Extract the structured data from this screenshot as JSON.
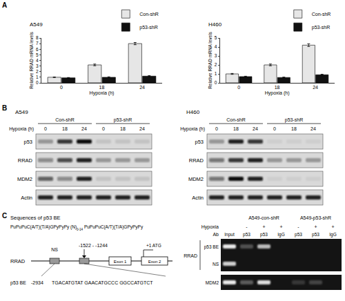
{
  "chart_data": [
    {
      "type": "bar",
      "title": "A549",
      "categories": [
        "0",
        "18",
        "24"
      ],
      "x_label": "Hypoxia (h)",
      "y_label": "Relative RRAD mRNA levels",
      "ylim": [
        0,
        8
      ],
      "yticks": [
        0,
        1,
        2,
        3,
        4,
        5,
        6,
        7,
        8
      ],
      "grid": false,
      "legend": "top-right",
      "series": [
        {
          "name": "Con-shR",
          "color": "#e6e6e6",
          "values": [
            1.0,
            3.2,
            7.0
          ],
          "error": [
            0.05,
            0.15,
            0.2
          ]
        },
        {
          "name": "p53-shR",
          "color": "#111111",
          "values": [
            0.9,
            1.0,
            1.2
          ],
          "error": [
            0.05,
            0.08,
            0.1
          ]
        }
      ]
    },
    {
      "type": "bar",
      "title": "H460",
      "categories": [
        "0",
        "18",
        "24"
      ],
      "x_label": "Hypoxia (h)",
      "y_label": "Relative RRAD mRNA levels",
      "ylim": [
        0,
        5
      ],
      "yticks": [
        0,
        1,
        2,
        3,
        4,
        5
      ],
      "grid": false,
      "legend": "top-right",
      "series": [
        {
          "name": "Con-shR",
          "color": "#e6e6e6",
          "values": [
            1.0,
            2.0,
            4.2
          ],
          "error": [
            0.05,
            0.1,
            0.15
          ]
        },
        {
          "name": "p53-shR",
          "color": "#111111",
          "values": [
            0.7,
            0.6,
            0.9
          ],
          "error": [
            0.04,
            0.04,
            0.06
          ]
        }
      ]
    }
  ],
  "panel_labels": [
    "A",
    "B",
    "C"
  ],
  "panel_b": {
    "hypoxia_label": "Hypoxia (h)",
    "blots": [
      {
        "cell_line": "A549",
        "groups": [
          "Con-shR",
          "p53-shR"
        ],
        "times": [
          "0",
          "18",
          "24"
        ],
        "rows": [
          {
            "name": "p53",
            "intensity": [
              0.3,
              0.8,
              1.0,
              0.1,
              0.1,
              0.1
            ]
          },
          {
            "name": "RRAD",
            "intensity": [
              0.4,
              0.7,
              0.9,
              0.3,
              0.3,
              0.3
            ]
          },
          {
            "name": "MDM2",
            "intensity": [
              0.6,
              0.4,
              0.9,
              0.1,
              0.1,
              0.1
            ]
          },
          {
            "name": "Actin",
            "intensity": [
              0.9,
              0.9,
              0.9,
              0.9,
              0.9,
              0.9
            ]
          }
        ]
      },
      {
        "cell_line": "H460",
        "groups": [
          "Con-shR",
          "p53-shR"
        ],
        "times": [
          "0",
          "18",
          "24"
        ],
        "rows": [
          {
            "name": "p53",
            "intensity": [
              0.3,
              0.9,
              0.8,
              0.05,
              0.05,
              0.05
            ]
          },
          {
            "name": "RRAD",
            "intensity": [
              0.5,
              0.8,
              0.9,
              0.3,
              0.3,
              0.3
            ]
          },
          {
            "name": "MDM2",
            "intensity": [
              0.5,
              1.0,
              0.9,
              0.05,
              0.05,
              0.05
            ]
          },
          {
            "name": "Actin",
            "intensity": [
              0.9,
              0.9,
              0.9,
              0.9,
              0.9,
              0.9
            ]
          }
        ]
      }
    ]
  },
  "panel_c": {
    "sequence_title": "Sequences of p53 BE",
    "consensus": [
      "PuPuPuC(A/T)(T/A)GPyPyPy (N)",
      "0-14",
      " PuPuPuC(A/T)(T/A)GPyPyPy"
    ],
    "gene": "RRAD",
    "ns_label": "NS",
    "be_region": "-1522 - -1244",
    "atg_label": "+1 ATG",
    "exons": [
      "Exon 1",
      "Exon 2"
    ],
    "be_label": "p53 BE",
    "be_start": "-2934",
    "be_sequence": "TGACATGTAT GAACATGCCC GGCCATGTCT",
    "gel": {
      "groups": [
        "A549-con-shR",
        "A549-p53-shR"
      ],
      "hypoxia_label": "Hypoxia",
      "hypoxia": [
        null,
        "-",
        "+",
        "+",
        "-",
        "+",
        "+"
      ],
      "ab_label": "Ab",
      "ab": [
        "Input",
        "p53",
        "p53",
        "IgG",
        "p53",
        "p53",
        "IgG"
      ],
      "gene_label": "RRAD",
      "rows": [
        {
          "name": "p53 BE",
          "intensity": [
            0.9,
            0.25,
            0.7,
            0.0,
            0.0,
            0.0,
            0.0
          ]
        },
        {
          "name": "NS",
          "intensity": [
            0.8,
            0.0,
            0.0,
            0.0,
            0.0,
            0.0,
            0.0
          ]
        },
        {
          "name": "MDM2",
          "intensity": [
            0.9,
            0.3,
            0.85,
            0.0,
            0.15,
            0.2,
            0.0
          ]
        }
      ]
    }
  }
}
